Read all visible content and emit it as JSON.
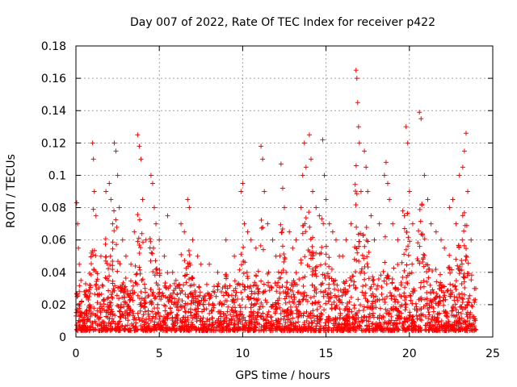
{
  "chart_data": {
    "type": "scatter",
    "title": "Day 007 of 2022, Rate Of TEC Index for receiver p422",
    "xlabel": "GPS time / hours",
    "ylabel": "ROTI / TECUs",
    "xlim": [
      0,
      25
    ],
    "ylim": [
      0,
      0.18
    ],
    "xticks": [
      0,
      5,
      10,
      15,
      20,
      25
    ],
    "xtick_labels": [
      "0",
      "5",
      "10",
      "15",
      "20",
      "25"
    ],
    "yticks": [
      0,
      0.02,
      0.04,
      0.06,
      0.08,
      0.1,
      0.12,
      0.14,
      0.16,
      0.18
    ],
    "ytick_labels": [
      "0",
      "0.02",
      "0.04",
      "0.06",
      "0.08",
      "0.1",
      "0.12",
      "0.14",
      "0.16",
      "0.18"
    ],
    "grid": true,
    "marker": "plus",
    "colors": {
      "points": "#ff0000",
      "grid": "#a0a0a0",
      "axes": "#000000"
    },
    "series": [
      {
        "points": [
          [
            0.05,
            0.083
          ],
          [
            0.1,
            0.07
          ],
          [
            0.15,
            0.055
          ],
          [
            0.2,
            0.045
          ],
          [
            0.3,
            0.035
          ],
          [
            0.5,
            0.028
          ],
          [
            0.8,
            0.025
          ],
          [
            1.0,
            0.12
          ],
          [
            1.05,
            0.11
          ],
          [
            1.1,
            0.09
          ],
          [
            1.2,
            0.075
          ],
          [
            1.5,
            0.05
          ],
          [
            1.8,
            0.09
          ],
          [
            2.0,
            0.095
          ],
          [
            2.1,
            0.085
          ],
          [
            2.2,
            0.07
          ],
          [
            2.3,
            0.12
          ],
          [
            2.4,
            0.115
          ],
          [
            2.5,
            0.1
          ],
          [
            2.6,
            0.08
          ],
          [
            2.8,
            0.06
          ],
          [
            3.0,
            0.05
          ],
          [
            3.3,
            0.045
          ],
          [
            3.5,
            0.065
          ],
          [
            3.7,
            0.125
          ],
          [
            3.8,
            0.118
          ],
          [
            3.9,
            0.11
          ],
          [
            4.0,
            0.085
          ],
          [
            4.2,
            0.06
          ],
          [
            4.5,
            0.1
          ],
          [
            4.6,
            0.095
          ],
          [
            4.7,
            0.08
          ],
          [
            4.8,
            0.07
          ],
          [
            5.0,
            0.06
          ],
          [
            5.3,
            0.05
          ],
          [
            5.5,
            0.075
          ],
          [
            5.8,
            0.04
          ],
          [
            6.0,
            0.035
          ],
          [
            6.3,
            0.07
          ],
          [
            6.5,
            0.065
          ],
          [
            6.7,
            0.085
          ],
          [
            6.8,
            0.08
          ],
          [
            7.0,
            0.06
          ],
          [
            7.3,
            0.05
          ],
          [
            7.5,
            0.045
          ],
          [
            8.0,
            0.045
          ],
          [
            8.5,
            0.04
          ],
          [
            9.0,
            0.06
          ],
          [
            9.5,
            0.05
          ],
          [
            9.9,
            0.09
          ],
          [
            10.0,
            0.095
          ],
          [
            10.1,
            0.07
          ],
          [
            10.3,
            0.065
          ],
          [
            10.5,
            0.06
          ],
          [
            10.8,
            0.055
          ],
          [
            11.1,
            0.118
          ],
          [
            11.2,
            0.11
          ],
          [
            11.3,
            0.09
          ],
          [
            11.5,
            0.07
          ],
          [
            11.8,
            0.06
          ],
          [
            12.0,
            0.05
          ],
          [
            12.3,
            0.107
          ],
          [
            12.4,
            0.092
          ],
          [
            12.5,
            0.08
          ],
          [
            12.8,
            0.065
          ],
          [
            13.0,
            0.055
          ],
          [
            13.2,
            0.06
          ],
          [
            13.5,
            0.08
          ],
          [
            13.6,
            0.1
          ],
          [
            13.7,
            0.12
          ],
          [
            13.8,
            0.105
          ],
          [
            14.0,
            0.125
          ],
          [
            14.1,
            0.11
          ],
          [
            14.2,
            0.09
          ],
          [
            14.4,
            0.08
          ],
          [
            14.6,
            0.075
          ],
          [
            14.8,
            0.122
          ],
          [
            14.9,
            0.1
          ],
          [
            15.0,
            0.085
          ],
          [
            15.2,
            0.07
          ],
          [
            15.4,
            0.065
          ],
          [
            15.6,
            0.06
          ],
          [
            15.8,
            0.05
          ],
          [
            16.0,
            0.05
          ],
          [
            16.2,
            0.06
          ],
          [
            16.5,
            0.07
          ],
          [
            16.8,
            0.165
          ],
          [
            16.85,
            0.16
          ],
          [
            16.9,
            0.145
          ],
          [
            16.95,
            0.13
          ],
          [
            17.0,
            0.12
          ],
          [
            17.1,
            0.09
          ],
          [
            17.3,
            0.115
          ],
          [
            17.4,
            0.105
          ],
          [
            17.5,
            0.09
          ],
          [
            17.7,
            0.075
          ],
          [
            17.9,
            0.06
          ],
          [
            18.2,
            0.07
          ],
          [
            18.5,
            0.1
          ],
          [
            18.6,
            0.108
          ],
          [
            18.7,
            0.095
          ],
          [
            18.8,
            0.085
          ],
          [
            19.0,
            0.07
          ],
          [
            19.3,
            0.06
          ],
          [
            19.6,
            0.078
          ],
          [
            19.7,
            0.075
          ],
          [
            19.8,
            0.13
          ],
          [
            19.9,
            0.12
          ],
          [
            20.0,
            0.09
          ],
          [
            20.2,
            0.07
          ],
          [
            20.6,
            0.139
          ],
          [
            20.7,
            0.135
          ],
          [
            20.9,
            0.1
          ],
          [
            21.1,
            0.085
          ],
          [
            21.3,
            0.07
          ],
          [
            21.6,
            0.065
          ],
          [
            21.9,
            0.06
          ],
          [
            22.1,
            0.055
          ],
          [
            22.4,
            0.08
          ],
          [
            22.6,
            0.085
          ],
          [
            22.8,
            0.07
          ],
          [
            23.0,
            0.1
          ],
          [
            23.2,
            0.105
          ],
          [
            23.3,
            0.115
          ],
          [
            23.4,
            0.126
          ],
          [
            23.5,
            0.09
          ],
          [
            23.7,
            0.06
          ],
          [
            23.9,
            0.03
          ]
        ]
      }
    ]
  }
}
